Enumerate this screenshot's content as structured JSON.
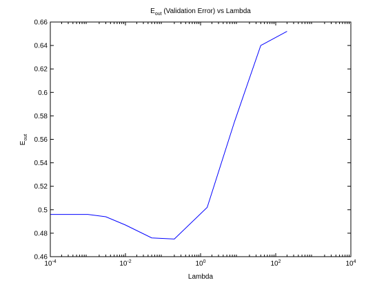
{
  "chart_data": {
    "type": "line",
    "title": {
      "main": "E",
      "subscript": "out",
      "rest": " (Validation Error) vs Lambda"
    },
    "xlabel": "Lambda",
    "ylabel": {
      "main": "E",
      "subscript": "out"
    },
    "xscale": "log",
    "xlim": [
      0.0001,
      10000
    ],
    "ylim": [
      0.46,
      0.66
    ],
    "x_ticks": [
      {
        "value": 0.0001,
        "base": "10",
        "exp": "-4"
      },
      {
        "value": 0.01,
        "base": "10",
        "exp": "-2"
      },
      {
        "value": 1,
        "base": "10",
        "exp": "0"
      },
      {
        "value": 100,
        "base": "10",
        "exp": "2"
      },
      {
        "value": 10000,
        "base": "10",
        "exp": "4"
      }
    ],
    "y_ticks": [
      {
        "value": 0.46,
        "label": "0.46"
      },
      {
        "value": 0.48,
        "label": "0.48"
      },
      {
        "value": 0.5,
        "label": "0.5"
      },
      {
        "value": 0.52,
        "label": "0.52"
      },
      {
        "value": 0.54,
        "label": "0.54"
      },
      {
        "value": 0.56,
        "label": "0.56"
      },
      {
        "value": 0.58,
        "label": "0.58"
      },
      {
        "value": 0.6,
        "label": "0.6"
      },
      {
        "value": 0.62,
        "label": "0.62"
      },
      {
        "value": 0.64,
        "label": "0.64"
      },
      {
        "value": 0.66,
        "label": "0.66"
      }
    ],
    "grid": false,
    "series": [
      {
        "color": "#0000ff",
        "x": [
          0.0001,
          0.001,
          0.003,
          0.01,
          0.05,
          0.2,
          1.5,
          8,
          40,
          200
        ],
        "y": [
          0.496,
          0.496,
          0.494,
          0.487,
          0.476,
          0.475,
          0.502,
          0.575,
          0.64,
          0.652
        ]
      }
    ]
  }
}
